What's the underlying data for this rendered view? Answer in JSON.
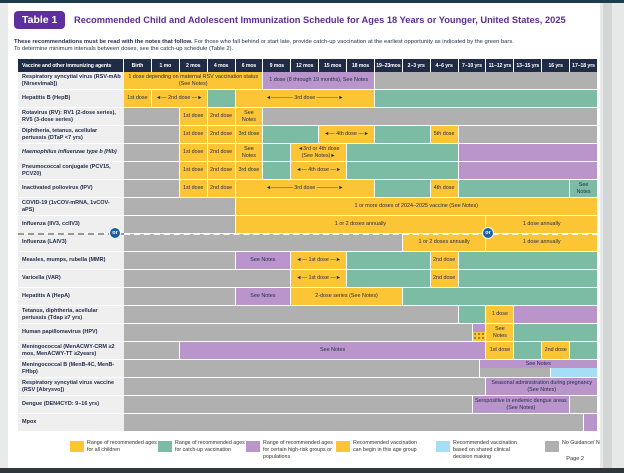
{
  "header": {
    "badge": "Table 1",
    "title": "Recommended Child and Adolescent Immunization Schedule for Ages 18 Years or Younger, United States, 2025",
    "note_bold": "These recommendations must be read with the notes that follow.",
    "note_rest": "For those who fall behind or start late, provide catch-up vaccination at the earliest opportunity as indicated by the green bars.",
    "note_line2": "To determine minimum intervals between doses, see the catch-up schedule (Table 2)."
  },
  "colors": {
    "recommended": "#FBC535",
    "catch_up": "#7DBCA4",
    "high_risk": "#B995CB",
    "no_guidance": "#B0B0B0",
    "shared_decision": "#A6DEF5",
    "header_navy": "#202B45",
    "title_purple": "#5C2D91",
    "badge_purple": "#5E2F9C",
    "or_badge_blue": "#1A5FA8"
  },
  "table": {
    "agent_header": "Vaccine and other immunizing agents",
    "columns": [
      "Birth",
      "1 mo",
      "2 mos",
      "4 mos",
      "6 mos",
      "9 mos",
      "12 mos",
      "15 mos",
      "18 mos",
      "19–23mos",
      "2–3 yrs",
      "4–6 yrs",
      "7–10 yrs",
      "11–12 yrs",
      "13–15 yrs",
      "16 yrs",
      "17–18 yrs"
    ],
    "or_label": "or",
    "rows": [
      {
        "label": "Respiratory syncytial virus (RSV-mAb [Nirsevimab])",
        "cells": [
          {
            "c": "y",
            "s": 0,
            "e": 5,
            "t": "1 dose depending on maternal RSV vaccination status (See Notes)"
          },
          {
            "c": "p",
            "s": 5,
            "e": 9,
            "t": "1 dose (8 through 19 months), See Notes"
          },
          {
            "c": "n",
            "s": 9,
            "e": 17
          }
        ]
      },
      {
        "label": "Hepatitis B (HepB)",
        "cells": [
          {
            "c": "y",
            "s": 0,
            "e": 1,
            "t": "1st dose"
          },
          {
            "c": "y",
            "s": 1,
            "e": 3,
            "t": "◄— 2nd dose —►"
          },
          {
            "c": "g",
            "s": 3,
            "e": 4
          },
          {
            "c": "y",
            "s": 4,
            "e": 9,
            "t": "◄———— 3rd dose ————►"
          },
          {
            "c": "g",
            "s": 9,
            "e": 17
          }
        ]
      },
      {
        "label": "Rotavirus (RV): RV1 (2-dose series), RV5 (3-dose series)",
        "cells": [
          {
            "c": "n",
            "s": 0,
            "e": 2
          },
          {
            "c": "y",
            "s": 2,
            "e": 3,
            "t": "1st dose"
          },
          {
            "c": "y",
            "s": 3,
            "e": 4,
            "t": "2nd dose"
          },
          {
            "c": "y",
            "s": 4,
            "e": 5,
            "t": "See Notes"
          },
          {
            "c": "n",
            "s": 5,
            "e": 17
          }
        ]
      },
      {
        "label": "Diphtheria, tetanus, acellular pertussis (DTaP <7 yrs)",
        "cells": [
          {
            "c": "n",
            "s": 0,
            "e": 2
          },
          {
            "c": "y",
            "s": 2,
            "e": 3,
            "t": "1st dose"
          },
          {
            "c": "y",
            "s": 3,
            "e": 4,
            "t": "2nd dose"
          },
          {
            "c": "y",
            "s": 4,
            "e": 5,
            "t": "3rd dose"
          },
          {
            "c": "g",
            "s": 5,
            "e": 7
          },
          {
            "c": "y",
            "s": 7,
            "e": 9,
            "t": "◄— 4th dose —►"
          },
          {
            "c": "g",
            "s": 9,
            "e": 11
          },
          {
            "c": "y",
            "s": 11,
            "e": 12,
            "t": "5th dose"
          },
          {
            "c": "n",
            "s": 12,
            "e": 17
          }
        ]
      },
      {
        "label": "Haemophilus influenzae type b (Hib)",
        "italic": true,
        "cells": [
          {
            "c": "n",
            "s": 0,
            "e": 2
          },
          {
            "c": "y",
            "s": 2,
            "e": 3,
            "t": "1st dose"
          },
          {
            "c": "y",
            "s": 3,
            "e": 4,
            "t": "2nd dose"
          },
          {
            "c": "y",
            "s": 4,
            "e": 5,
            "t": "See Notes"
          },
          {
            "c": "g",
            "s": 5,
            "e": 6
          },
          {
            "c": "y",
            "s": 6,
            "e": 8,
            "t": "◄3rd or 4th dose (See Notes)►"
          },
          {
            "c": "g",
            "s": 8,
            "e": 12
          },
          {
            "c": "p",
            "s": 12,
            "e": 17
          }
        ]
      },
      {
        "label": "Pneumococcal conjugate (PCV15, PCV20)",
        "cells": [
          {
            "c": "n",
            "s": 0,
            "e": 2
          },
          {
            "c": "y",
            "s": 2,
            "e": 3,
            "t": "1st dose"
          },
          {
            "c": "y",
            "s": 3,
            "e": 4,
            "t": "2nd dose"
          },
          {
            "c": "y",
            "s": 4,
            "e": 5,
            "t": "3rd dose"
          },
          {
            "c": "g",
            "s": 5,
            "e": 6
          },
          {
            "c": "y",
            "s": 6,
            "e": 8,
            "t": "◄— 4th dose —►"
          },
          {
            "c": "g",
            "s": 8,
            "e": 12
          },
          {
            "c": "p",
            "s": 12,
            "e": 17
          }
        ]
      },
      {
        "label": "Inactivated poliovirus (IPV)",
        "cells": [
          {
            "c": "n",
            "s": 0,
            "e": 2
          },
          {
            "c": "y",
            "s": 2,
            "e": 3,
            "t": "1st dose"
          },
          {
            "c": "y",
            "s": 3,
            "e": 4,
            "t": "2nd dose"
          },
          {
            "c": "y",
            "s": 4,
            "e": 9,
            "t": "◄———— 3rd dose ————►"
          },
          {
            "c": "g",
            "s": 9,
            "e": 11
          },
          {
            "c": "y",
            "s": 11,
            "e": 12,
            "t": "4th dose"
          },
          {
            "c": "g",
            "s": 12,
            "e": 16
          },
          {
            "c": "g",
            "s": 16,
            "e": 17,
            "t": "See Notes"
          }
        ]
      },
      {
        "label": "COVID-19 (1vCOV-mRNA, 1vCOV-aPS)",
        "cells": [
          {
            "c": "n",
            "s": 0,
            "e": 4
          },
          {
            "c": "y",
            "s": 4,
            "e": 17,
            "t": "1 or more doses of 2024–2025 vaccine (See Notes)"
          }
        ]
      },
      {
        "label": "Influenza (IIV3, ccIIV3)",
        "cells": [
          {
            "c": "n",
            "s": 0,
            "e": 4
          },
          {
            "c": "y",
            "s": 4,
            "e": 13,
            "t": "1 or 2 doses annually"
          },
          {
            "c": "y",
            "s": 13,
            "e": 17,
            "t": "1 dose annually"
          }
        ]
      },
      {
        "label": "Influenza (LAIV3)",
        "cells": [
          {
            "c": "n",
            "s": 0,
            "e": 10
          },
          {
            "c": "y",
            "s": 10,
            "e": 13,
            "t": "1 or 2 doses annually"
          },
          {
            "c": "y",
            "s": 13,
            "e": 17,
            "t": "1 dose annually"
          }
        ]
      },
      {
        "label": "Measles, mumps, rubella (MMR)",
        "cells": [
          {
            "c": "n",
            "s": 0,
            "e": 4
          },
          {
            "c": "p",
            "s": 4,
            "e": 6,
            "t": "See Notes"
          },
          {
            "c": "y",
            "s": 6,
            "e": 8,
            "t": "◄— 1st dose —►"
          },
          {
            "c": "g",
            "s": 8,
            "e": 11
          },
          {
            "c": "y",
            "s": 11,
            "e": 12,
            "t": "2nd dose"
          },
          {
            "c": "g",
            "s": 12,
            "e": 17
          }
        ]
      },
      {
        "label": "Varicella (VAR)",
        "cells": [
          {
            "c": "n",
            "s": 0,
            "e": 6
          },
          {
            "c": "y",
            "s": 6,
            "e": 8,
            "t": "◄— 1st dose —►"
          },
          {
            "c": "g",
            "s": 8,
            "e": 11
          },
          {
            "c": "y",
            "s": 11,
            "e": 12,
            "t": "2nd dose"
          },
          {
            "c": "g",
            "s": 12,
            "e": 17
          }
        ]
      },
      {
        "label": "Hepatitis A (HepA)",
        "cells": [
          {
            "c": "n",
            "s": 0,
            "e": 4
          },
          {
            "c": "p",
            "s": 4,
            "e": 6,
            "t": "See Notes"
          },
          {
            "c": "y",
            "s": 6,
            "e": 10,
            "t": "2-dose series (See Notes)"
          },
          {
            "c": "g",
            "s": 10,
            "e": 17
          }
        ]
      },
      {
        "label": "Tetanus, diphtheria, acellular pertussis (Tdap ≥7 yrs)",
        "cells": [
          {
            "c": "n",
            "s": 0,
            "e": 12
          },
          {
            "c": "g",
            "s": 12,
            "e": 13
          },
          {
            "c": "y",
            "s": 13,
            "e": 14,
            "t": "1 dose"
          },
          {
            "c": "p",
            "s": 14,
            "e": 17
          }
        ]
      },
      {
        "label": "Human papillomavirus (HPV)",
        "cells": [
          {
            "c": "n",
            "s": 0,
            "e": 12.5
          },
          {
            "c": "p",
            "s": 12.5,
            "e": 13,
            "h": "t"
          },
          {
            "c": "d",
            "s": 12.5,
            "e": 13,
            "h": "b"
          },
          {
            "c": "y",
            "s": 13,
            "e": 14,
            "t": "See Notes"
          },
          {
            "c": "g",
            "s": 14,
            "e": 17
          }
        ]
      },
      {
        "label": "Meningococcal (MenACWY-CRM ≥2 mos, MenACWY-TT ≥2years)",
        "cells": [
          {
            "c": "n",
            "s": 0,
            "e": 2
          },
          {
            "c": "p",
            "s": 2,
            "e": 13,
            "t": "See Notes"
          },
          {
            "c": "y",
            "s": 13,
            "e": 14,
            "t": "1st dose"
          },
          {
            "c": "g",
            "s": 14,
            "e": 15
          },
          {
            "c": "y",
            "s": 15,
            "e": 16,
            "t": "2nd dose"
          },
          {
            "c": "g",
            "s": 16,
            "e": 17
          }
        ]
      },
      {
        "label": "Meningococcal B (MenB-4C, MenB-FHbp)",
        "cells": [
          {
            "c": "n",
            "s": 0,
            "e": 12.75
          },
          {
            "c": "p",
            "s": 12.75,
            "e": 17,
            "t": "See Notes",
            "h": "t"
          },
          {
            "c": "n",
            "s": 12.75,
            "e": 15.3,
            "h": "b"
          },
          {
            "c": "b",
            "s": 15.3,
            "e": 17,
            "h": "b"
          }
        ]
      },
      {
        "label": "Respiratory syncytial virus vaccine (RSV [Abrysvo])",
        "cells": [
          {
            "c": "n",
            "s": 0,
            "e": 13
          },
          {
            "c": "p",
            "s": 13,
            "e": 17,
            "t": "Seasonal administration during pregnancy (See Notes)"
          }
        ]
      },
      {
        "label": "Dengue (DEN4CYD: 9–16 yrs)",
        "cells": [
          {
            "c": "n",
            "s": 0,
            "e": 12.5
          },
          {
            "c": "p",
            "s": 12.5,
            "e": 16,
            "t": "Seropositive in endemic dengue areas (See Notes)"
          },
          {
            "c": "n",
            "s": 16,
            "e": 17
          }
        ]
      },
      {
        "label": "Mpox",
        "cells": [
          {
            "c": "n",
            "s": 0,
            "e": 16.5
          },
          {
            "c": "p",
            "s": 16.5,
            "e": 17
          }
        ]
      }
    ]
  },
  "legend": {
    "items": [
      {
        "swatch": "yellow",
        "label": "Range of recommended ages for all children"
      },
      {
        "swatch": "green",
        "label": "Range of recommended ages for catch-up vaccination"
      },
      {
        "swatch": "purple",
        "label": "Range of recommended ages for certain high-risk groups or populations"
      },
      {
        "swatch": "dotted",
        "label": "Recommended vaccination can begin in this age group"
      },
      {
        "swatch": "blue",
        "label": "Recommended vaccination based on shared clinical decision making"
      },
      {
        "swatch": "gray",
        "label": "No Guidance/ Not Applicable"
      }
    ]
  },
  "footer": {
    "page": "Page 2"
  }
}
